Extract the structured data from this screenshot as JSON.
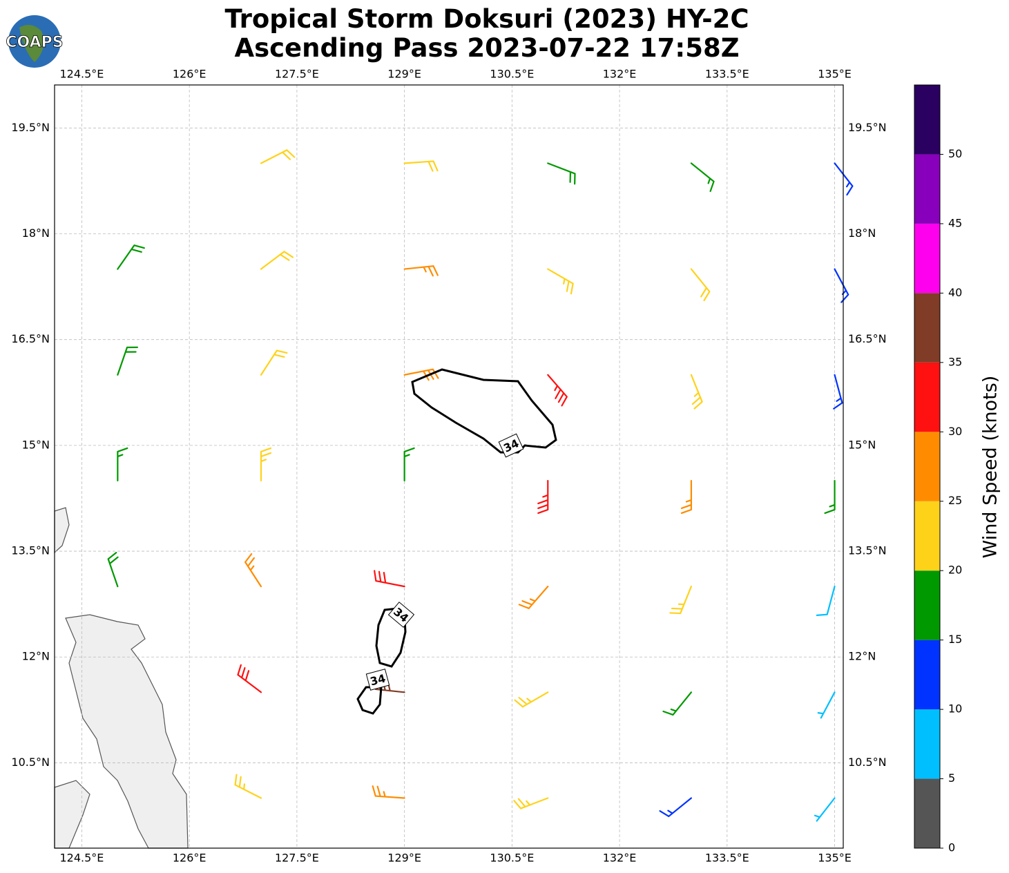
{
  "chart_data": {
    "type": "barbs",
    "title": [
      "Tropical Storm Doksuri (2023) HY-2C",
      "Ascending Pass 2023-07-22 17:58Z"
    ],
    "logo": "COAPS",
    "xlim": [
      124.12,
      135.12
    ],
    "ylim": [
      9.29,
      20.11
    ],
    "xticks": [
      {
        "value": 124.5,
        "label": "124.5°E"
      },
      {
        "value": 126,
        "label": "126°E"
      },
      {
        "value": 127.5,
        "label": "127.5°E"
      },
      {
        "value": 129,
        "label": "129°E"
      },
      {
        "value": 130.5,
        "label": "130.5°E"
      },
      {
        "value": 132,
        "label": "132°E"
      },
      {
        "value": 133.5,
        "label": "133.5°E"
      },
      {
        "value": 135,
        "label": "135°E"
      }
    ],
    "yticks": [
      {
        "value": 10.5,
        "label": "10.5°N"
      },
      {
        "value": 12,
        "label": "12°N"
      },
      {
        "value": 13.5,
        "label": "13.5°N"
      },
      {
        "value": 15,
        "label": "15°N"
      },
      {
        "value": 16.5,
        "label": "16.5°N"
      },
      {
        "value": 18,
        "label": "18°N"
      },
      {
        "value": 19.5,
        "label": "19.5°N"
      }
    ],
    "grid": true,
    "contour_level": 34,
    "barbs": [
      {
        "lon": 127,
        "lat": 19,
        "speed": 22,
        "direction": 63
      },
      {
        "lon": 129,
        "lat": 19,
        "speed": 22,
        "direction": 86
      },
      {
        "lon": 131,
        "lat": 19,
        "speed": 18,
        "direction": 111
      },
      {
        "lon": 133,
        "lat": 19,
        "speed": 16,
        "direction": 129
      },
      {
        "lon": 135,
        "lat": 19,
        "speed": 13,
        "direction": 142
      },
      {
        "lon": 125,
        "lat": 17.5,
        "speed": 18,
        "direction": 35
      },
      {
        "lon": 127,
        "lat": 17.5,
        "speed": 22,
        "direction": 53
      },
      {
        "lon": 129,
        "lat": 17.5,
        "speed": 25,
        "direction": 84
      },
      {
        "lon": 131,
        "lat": 17.5,
        "speed": 24,
        "direction": 120
      },
      {
        "lon": 133,
        "lat": 17.5,
        "speed": 20,
        "direction": 141
      },
      {
        "lon": 135,
        "lat": 17.5,
        "speed": 13,
        "direction": 152
      },
      {
        "lon": 125,
        "lat": 16,
        "speed": 18,
        "direction": 19
      },
      {
        "lon": 127,
        "lat": 16,
        "speed": 22,
        "direction": 33
      },
      {
        "lon": 129,
        "lat": 16,
        "speed": 28,
        "direction": 79
      },
      {
        "lon": 131,
        "lat": 16,
        "speed": 33,
        "direction": 139
      },
      {
        "lon": 133,
        "lat": 16,
        "speed": 24,
        "direction": 158
      },
      {
        "lon": 135,
        "lat": 16,
        "speed": 13,
        "direction": 165
      },
      {
        "lon": 125,
        "lat": 14.5,
        "speed": 17,
        "direction": 0
      },
      {
        "lon": 127,
        "lat": 14.5,
        "speed": 23,
        "direction": 0
      },
      {
        "lon": 129,
        "lat": 14.5,
        "speed": 17,
        "direction": 0
      },
      {
        "lon": 131,
        "lat": 14.5,
        "speed": 33,
        "direction": 180
      },
      {
        "lon": 133,
        "lat": 14.5,
        "speed": 27,
        "direction": 180
      },
      {
        "lon": 135,
        "lat": 14.5,
        "speed": 16,
        "direction": 180
      },
      {
        "lon": 125,
        "lat": 13,
        "speed": 18,
        "direction": 341
      },
      {
        "lon": 127,
        "lat": 13,
        "speed": 27,
        "direction": 327
      },
      {
        "lon": 129,
        "lat": 13,
        "speed": 30,
        "direction": 281
      },
      {
        "lon": 131,
        "lat": 13,
        "speed": 27,
        "direction": 221
      },
      {
        "lon": 133,
        "lat": 13,
        "speed": 24,
        "direction": 202
      },
      {
        "lon": 135,
        "lat": 13,
        "speed": 8,
        "direction": 195
      },
      {
        "lon": 127,
        "lat": 11.5,
        "speed": 32,
        "direction": 307
      },
      {
        "lon": 129,
        "lat": 11.5,
        "speed": 35,
        "direction": 276
      },
      {
        "lon": 131,
        "lat": 11.5,
        "speed": 24,
        "direction": 240
      },
      {
        "lon": 133,
        "lat": 11.5,
        "speed": 16,
        "direction": 219
      },
      {
        "lon": 135,
        "lat": 11.5,
        "speed": 7,
        "direction": 208
      },
      {
        "lon": 127,
        "lat": 10,
        "speed": 23,
        "direction": 297
      },
      {
        "lon": 129,
        "lat": 10,
        "speed": 27,
        "direction": 274
      },
      {
        "lon": 131,
        "lat": 10,
        "speed": 24,
        "direction": 249
      },
      {
        "lon": 133,
        "lat": 10,
        "speed": 13,
        "direction": 231
      },
      {
        "lon": 135,
        "lat": 10,
        "speed": 5,
        "direction": 218
      }
    ],
    "colorbar": {
      "label": "Wind Speed (knots)",
      "bins": [
        0,
        5,
        10,
        15,
        20,
        25,
        30,
        35,
        40,
        45,
        50,
        55
      ],
      "colors": [
        "#555555",
        "#00bfff",
        "#0033ff",
        "#009900",
        "#ffd21a",
        "#ff8c00",
        "#ff1111",
        "#803c26",
        "#ff00ee",
        "#8800bb",
        "#2a0060"
      ],
      "ticks": [
        0,
        5,
        10,
        15,
        20,
        25,
        30,
        35,
        40,
        45,
        50
      ]
    }
  }
}
